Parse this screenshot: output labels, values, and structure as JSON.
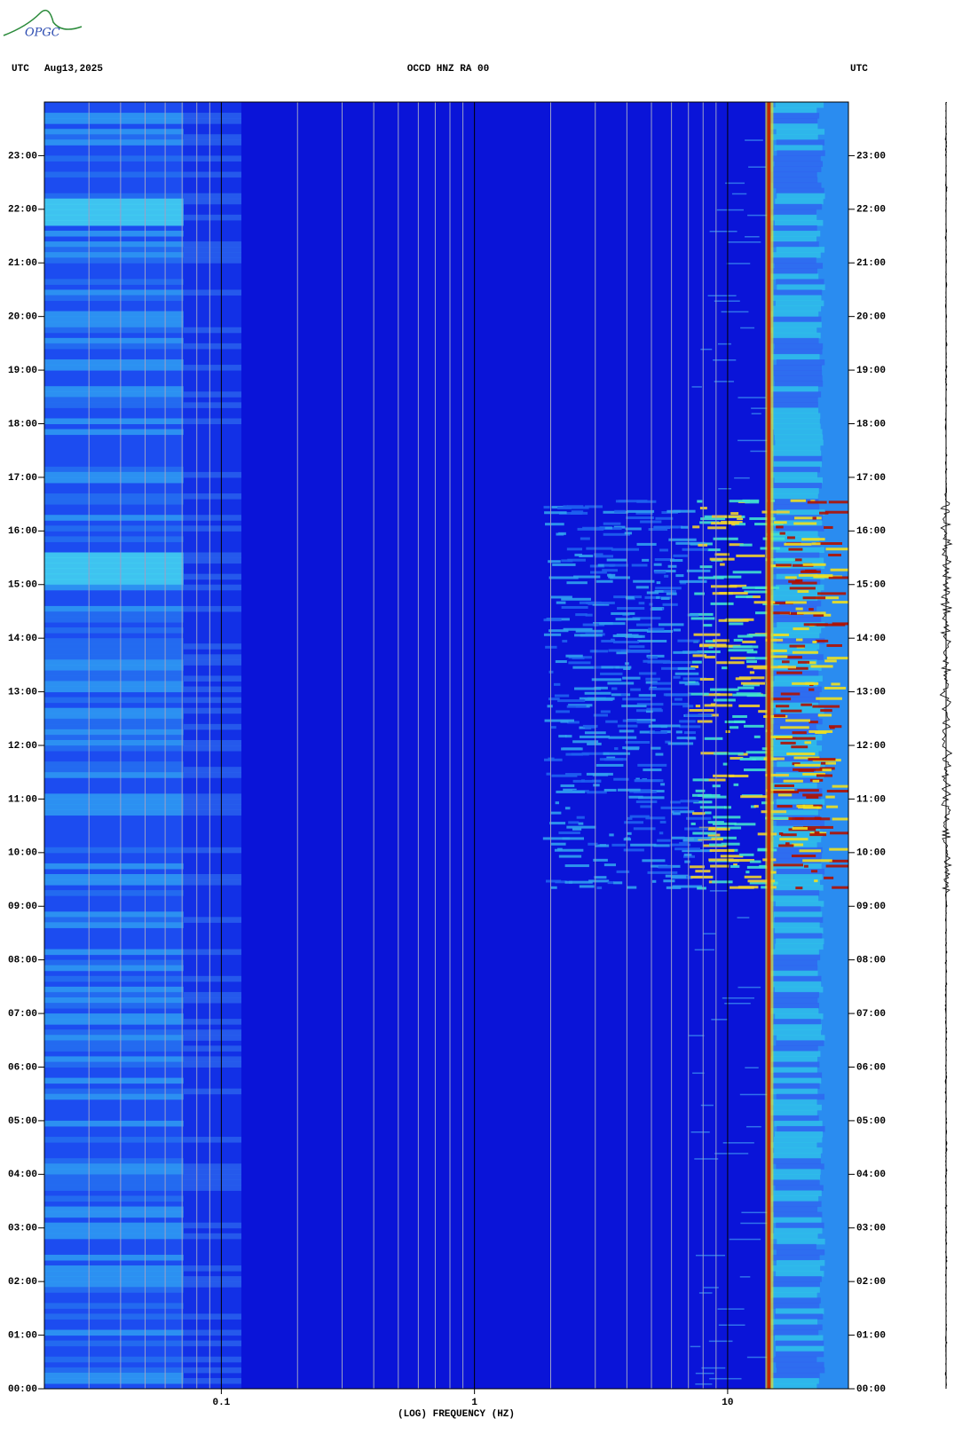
{
  "logo": "OPGC",
  "chart_data": {
    "type": "spectrogram",
    "left_label": "UTC",
    "date": "Aug13,2025",
    "title": "OCCD HNZ RA 00",
    "right_label": "UTC",
    "xlabel": "(LOG) FREQUENCY (HZ)",
    "xscale": "log",
    "xlim": [
      0.02,
      30
    ],
    "xticks": [
      0.1,
      1,
      10
    ],
    "xgrid": [
      0.03,
      0.04,
      0.05,
      0.06,
      0.07,
      0.08,
      0.09,
      0.2,
      0.3,
      0.4,
      0.5,
      0.6,
      0.7,
      0.8,
      0.9,
      2,
      3,
      4,
      5,
      6,
      7,
      8,
      9
    ],
    "ylim": [
      0,
      24
    ],
    "yticks": [
      {
        "value": 0,
        "label": "00:00"
      },
      {
        "value": 1,
        "label": "01:00"
      },
      {
        "value": 2,
        "label": "02:00"
      },
      {
        "value": 3,
        "label": "03:00"
      },
      {
        "value": 4,
        "label": "04:00"
      },
      {
        "value": 5,
        "label": "05:00"
      },
      {
        "value": 6,
        "label": "06:00"
      },
      {
        "value": 7,
        "label": "07:00"
      },
      {
        "value": 8,
        "label": "08:00"
      },
      {
        "value": 9,
        "label": "09:00"
      },
      {
        "value": 10,
        "label": "10:00"
      },
      {
        "value": 11,
        "label": "11:00"
      },
      {
        "value": 12,
        "label": "12:00"
      },
      {
        "value": 13,
        "label": "13:00"
      },
      {
        "value": 14,
        "label": "14:00"
      },
      {
        "value": 15,
        "label": "15:00"
      },
      {
        "value": 16,
        "label": "16:00"
      },
      {
        "value": 17,
        "label": "17:00"
      },
      {
        "value": 18,
        "label": "18:00"
      },
      {
        "value": 19,
        "label": "19:00"
      },
      {
        "value": 20,
        "label": "20:00"
      },
      {
        "value": 21,
        "label": "21:00"
      },
      {
        "value": 22,
        "label": "22:00"
      },
      {
        "value": 23,
        "label": "23:00"
      }
    ]
  }
}
